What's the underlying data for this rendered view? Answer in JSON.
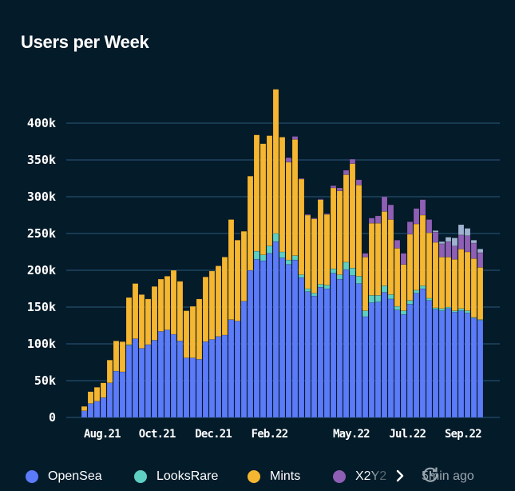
{
  "title": "Users per Week",
  "legend": [
    {
      "label": "OpenSea",
      "color": "#5b7bf9"
    },
    {
      "label": "LooksRare",
      "color": "#5ecfc3"
    },
    {
      "label": "Mints",
      "color": "#f5b731"
    },
    {
      "label": "X2Y2",
      "color": "#8e5fb5"
    }
  ],
  "updated": "5min ago",
  "chart_data": {
    "type": "bar",
    "stacked": true,
    "title": "Users per Week",
    "xlabel": "",
    "ylabel": "",
    "ylim": [
      0,
      450000
    ],
    "yticks": [
      0,
      50000,
      100000,
      150000,
      200000,
      250000,
      300000,
      350000,
      400000
    ],
    "ytick_labels": [
      "0",
      "50k",
      "100k",
      "150k",
      "200k",
      "250k",
      "300k",
      "350k",
      "400k"
    ],
    "grid": true,
    "legend_position": "bottom",
    "unit": "thousands",
    "xtick_labels": [
      {
        "label": "Aug.21",
        "week_index": 2.8
      },
      {
        "label": "Oct.21",
        "week_index": 11.4
      },
      {
        "label": "Dec.21",
        "week_index": 20.2
      },
      {
        "label": "Feb.22",
        "week_index": 29
      },
      {
        "label": "May.22",
        "week_index": 41.8
      },
      {
        "label": "Jul.22",
        "week_index": 50.6
      },
      {
        "label": "Sep.22",
        "week_index": 59.3
      }
    ],
    "series": [
      {
        "name": "OpenSea",
        "color": "#5b7bf9",
        "values": [
          9,
          19,
          22,
          27,
          47,
          63,
          62,
          98,
          107,
          94,
          99,
          105,
          117,
          119,
          113,
          104,
          81,
          81,
          79,
          103,
          106,
          110,
          112,
          133,
          131,
          158,
          200,
          215,
          213,
          223,
          239,
          217,
          208,
          214,
          190,
          171,
          165,
          177,
          175,
          196,
          188,
          201,
          193,
          182,
          137,
          156,
          157,
          170,
          161,
          146,
          140,
          154,
          169,
          175,
          159,
          147,
          145,
          148,
          143,
          145,
          142,
          135,
          132
        ]
      },
      {
        "name": "LooksRare",
        "color": "#5ecfc3",
        "values": [
          0,
          0,
          0,
          0,
          0,
          0,
          0,
          1,
          0,
          0,
          0,
          0,
          0,
          0,
          0,
          0,
          0,
          0,
          0,
          0,
          0,
          0,
          0,
          0,
          0,
          0,
          0,
          11,
          8,
          10,
          11,
          8,
          6,
          6,
          4,
          4,
          4,
          4,
          5,
          6,
          6,
          10,
          10,
          10,
          8,
          10,
          9,
          9,
          6,
          5,
          5,
          5,
          4,
          4,
          3,
          2,
          3,
          2,
          2,
          3,
          3,
          1,
          1
        ]
      },
      {
        "name": "Mints",
        "color": "#f5b731",
        "values": [
          6,
          16,
          19,
          20,
          31,
          41,
          41,
          64,
          75,
          73,
          62,
          73,
          71,
          73,
          87,
          81,
          64,
          70,
          82,
          88,
          93,
          96,
          106,
          136,
          110,
          95,
          128,
          158,
          151,
          150,
          196,
          156,
          133,
          158,
          130,
          100,
          101,
          115,
          96,
          110,
          114,
          119,
          142,
          124,
          73,
          98,
          98,
          101,
          102,
          79,
          63,
          90,
          90,
          96,
          89,
          89,
          70,
          68,
          70,
          81,
          80,
          80,
          71
        ]
      },
      {
        "name": "X2Y2",
        "color": "#8e5fb5",
        "values": [
          0,
          0,
          0,
          0,
          0,
          0,
          0,
          0,
          0,
          0,
          0,
          0,
          0,
          0,
          0,
          0,
          0,
          0,
          0,
          0,
          0,
          0,
          0,
          0,
          0,
          0,
          0,
          0,
          0,
          0,
          0,
          0,
          6,
          4,
          1,
          1,
          1,
          1,
          1,
          3,
          4,
          6,
          6,
          7,
          5,
          7,
          10,
          20,
          20,
          11,
          15,
          17,
          21,
          21,
          18,
          14,
          18,
          21,
          18,
          19,
          22,
          21,
          20
        ]
      },
      {
        "name": "",
        "color": "#9fb3d0",
        "values": [
          0,
          0,
          0,
          0,
          0,
          0,
          0,
          0,
          0,
          0,
          0,
          0,
          0,
          0,
          0,
          0,
          0,
          0,
          0,
          0,
          0,
          0,
          0,
          0,
          0,
          0,
          0,
          0,
          0,
          0,
          0,
          0,
          0,
          0,
          0,
          0,
          0,
          0,
          0,
          0,
          0,
          0,
          0,
          0,
          0,
          0,
          0,
          0,
          0,
          0,
          0,
          0,
          0,
          0,
          0,
          2,
          3,
          6,
          11,
          14,
          10,
          4,
          5
        ]
      }
    ]
  }
}
